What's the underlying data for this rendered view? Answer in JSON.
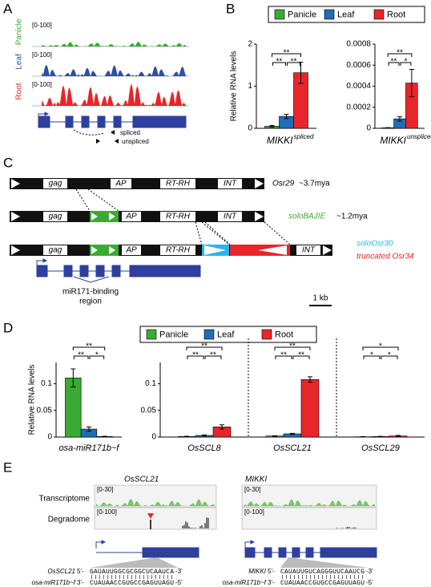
{
  "panel_labels": [
    "A",
    "B",
    "C",
    "D",
    "E"
  ],
  "panel_a": {
    "tracks": [
      {
        "name": "Panicle",
        "range": "[0-100]",
        "color": "#3aaa35"
      },
      {
        "name": "Leaf",
        "range": "[0-100]",
        "color": "#2e4fa3"
      },
      {
        "name": "Root",
        "range": "[0-100]",
        "color": "#e8252a"
      }
    ],
    "isoforms": [
      "spliced",
      "unspliced"
    ]
  },
  "chart_data": [
    {
      "type": "bar",
      "ylabel": "Relative RNA levels",
      "categories": [
        "MIKKI"
      ],
      "category_superscripts": [
        "spliced"
      ],
      "series": [
        {
          "name": "Panicle",
          "color": "#3aaa35",
          "values": [
            0.05
          ],
          "errors": [
            0.02
          ]
        },
        {
          "name": "Leaf",
          "color": "#1f6db5",
          "values": [
            0.28
          ],
          "errors": [
            0.05
          ]
        },
        {
          "name": "Root",
          "color": "#e8252a",
          "values": [
            1.32
          ],
          "errors": [
            0.25
          ]
        }
      ],
      "significance": [
        [
          "**",
          "**",
          "**"
        ]
      ],
      "ylim": [
        0,
        2
      ],
      "yticks": [
        0,
        1,
        2
      ]
    },
    {
      "type": "bar",
      "categories": [
        "MIKKI"
      ],
      "category_superscripts": [
        "unspliced"
      ],
      "series": [
        {
          "color": "#3aaa35",
          "values": [
            5e-06
          ],
          "errors": [
            2e-06
          ]
        },
        {
          "color": "#1f6db5",
          "values": [
            9e-05
          ],
          "errors": [
            2e-05
          ]
        },
        {
          "color": "#e8252a",
          "values": [
            0.00043
          ],
          "errors": [
            0.00013
          ]
        }
      ],
      "significance": [
        [
          "**",
          "*",
          "**"
        ]
      ],
      "ylim": [
        0,
        0.0008
      ],
      "yticks": [
        0,
        0.0002,
        0.0004,
        0.0006,
        0.0008
      ]
    },
    {
      "type": "bar",
      "ylabel": "Relative RNA levels",
      "categories": [
        "osa-miR171b~f"
      ],
      "series": [
        {
          "name": "Panicle",
          "color": "#3aaa35",
          "values": [
            0.111
          ],
          "errors": [
            0.017
          ]
        },
        {
          "name": "Leaf",
          "color": "#1f6db5",
          "values": [
            0.015
          ],
          "errors": [
            0.004
          ]
        },
        {
          "name": "Root",
          "color": "#e8252a",
          "values": [
            0.001
          ],
          "errors": [
            0.0005
          ]
        }
      ],
      "significance": [
        [
          "**",
          "*",
          "**"
        ]
      ],
      "ylim": [
        0,
        0.14
      ],
      "yticks": [
        0,
        0.05,
        0.1
      ]
    },
    {
      "type": "bar",
      "categories": [
        "OsSCL8",
        "OsSCL21",
        "OsSCL29"
      ],
      "series": [
        {
          "color": "#3aaa35",
          "values": [
            0.001,
            0.002,
            0.0005
          ],
          "errors": [
            0.0005,
            0.0005,
            0.0002
          ]
        },
        {
          "color": "#1f6db5",
          "values": [
            0.003,
            0.006,
            0.001
          ],
          "errors": [
            0.001,
            0.001,
            0.0003
          ]
        },
        {
          "color": "#e8252a",
          "values": [
            0.019,
            0.108,
            0.002
          ],
          "errors": [
            0.004,
            0.005,
            0.001
          ]
        }
      ],
      "significance": [
        [
          "**",
          "**",
          "**"
        ],
        [
          "**",
          "**",
          "**"
        ],
        [
          "*",
          "*",
          "*"
        ]
      ],
      "ylim": [
        0,
        0.14
      ],
      "yticks": [
        0,
        0.05,
        0.1
      ]
    }
  ],
  "panel_c": {
    "domains": [
      "gag",
      "AP",
      "RT-RH",
      "INT"
    ],
    "rows": [
      {
        "label": "Osr29",
        "age": "~3.7mya"
      },
      {
        "label": "soloBAJIE",
        "age": "~1.2mya"
      },
      {
        "inserts": [
          "soloOsr30",
          "truncated Osr34"
        ]
      }
    ],
    "region_label": [
      "miR171-binding",
      "region"
    ],
    "scale": "1 kb"
  },
  "panel_e": {
    "track_names": [
      "Transcriptome",
      "Degradome"
    ],
    "genes": [
      {
        "name": "OsSCL21",
        "ranges": [
          "[0-30]",
          "[0-100]"
        ],
        "target_seq": "GAUAUUGGCGCGGCUCAAUCA"
      },
      {
        "name": "MIKKI",
        "ranges": [
          "[0-30]",
          "[0-100]"
        ],
        "target_seq": "CAUAUUGUCAGGGUUCAAUCG"
      }
    ],
    "mirna": {
      "name": "osa-miR171b~f",
      "seq": "CUAUAACCGUGCCGAGUUAGU"
    },
    "ends": [
      "5'-",
      "-3'",
      "3'-",
      "-5'"
    ]
  }
}
